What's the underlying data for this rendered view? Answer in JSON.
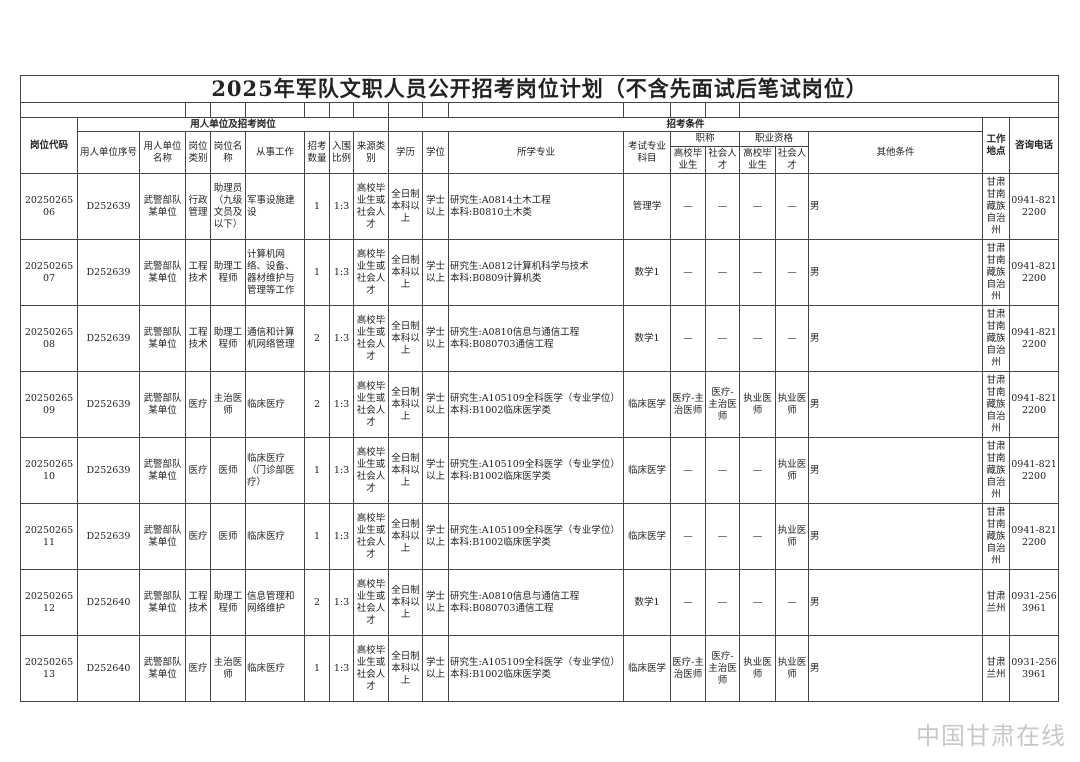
{
  "title": "2025年军队文职人员公开招考岗位计划（不含先面试后笔试岗位）",
  "headers": {
    "post_code": "岗位代码",
    "group_unit": "用人单位及招考岗位",
    "group_conditions": "招考条件",
    "unit_seq": "用人单位序号",
    "unit_name": "用人单位名称",
    "post_type": "岗位类别",
    "post_name": "岗位名称",
    "work": "从事工作",
    "count": "招考数量",
    "ratio": "入围比例",
    "source": "来源类别",
    "education": "学历",
    "degree": "学位",
    "major": "所学专业",
    "exam_subject": "考试专业科目",
    "title_group": "职称",
    "qual_group": "职业资格",
    "grad": "高校毕业生",
    "social": "社会人才",
    "grad2": "高校毕业生",
    "social2": "社会人才",
    "other": "其他条件",
    "location": "工作地点",
    "phone": "咨询电话"
  },
  "rows": [
    {
      "code": "2025026506",
      "seq": "D252639",
      "unit": "武警部队某单位",
      "type": "行政管理",
      "post": "助理员（九级文员及以下）",
      "work": "军事设施建设",
      "count": "1",
      "ratio": "1:3",
      "source": "高校毕业生或社会人才",
      "edu": "全日制本科以上",
      "degree": "学士以上",
      "major": "研究生:A0814土木工程\n本科:B0810土木类",
      "exam": "管理学",
      "t_grad": "—",
      "t_soc": "—",
      "q_grad": "—",
      "q_soc": "—",
      "other": "男",
      "loc": "甘肃甘南藏族自治州",
      "phone": "0941-8212200"
    },
    {
      "code": "2025026507",
      "seq": "D252639",
      "unit": "武警部队某单位",
      "type": "工程技术",
      "post": "助理工程师",
      "work": "计算机网络、设备、器材维护与管理等工作",
      "count": "1",
      "ratio": "1:3",
      "source": "高校毕业生或社会人才",
      "edu": "全日制本科以上",
      "degree": "学士以上",
      "major": "研究生:A0812计算机科学与技术\n本科:B0809计算机类",
      "exam": "数学1",
      "t_grad": "—",
      "t_soc": "—",
      "q_grad": "—",
      "q_soc": "—",
      "other": "男",
      "loc": "甘肃甘南藏族自治州",
      "phone": "0941-8212200"
    },
    {
      "code": "2025026508",
      "seq": "D252639",
      "unit": "武警部队某单位",
      "type": "工程技术",
      "post": "助理工程师",
      "work": "通信和计算机网络管理",
      "count": "2",
      "ratio": "1:3",
      "source": "高校毕业生或社会人才",
      "edu": "全日制本科以上",
      "degree": "学士以上",
      "major": "研究生:A0810信息与通信工程\n本科:B080703通信工程",
      "exam": "数学1",
      "t_grad": "—",
      "t_soc": "—",
      "q_grad": "—",
      "q_soc": "—",
      "other": "男",
      "loc": "甘肃甘南藏族自治州",
      "phone": "0941-8212200"
    },
    {
      "code": "2025026509",
      "seq": "D252639",
      "unit": "武警部队某单位",
      "type": "医疗",
      "post": "主治医师",
      "work": "临床医疗",
      "count": "2",
      "ratio": "1:3",
      "source": "高校毕业生或社会人才",
      "edu": "全日制本科以上",
      "degree": "学士以上",
      "major": "研究生:A105109全科医学（专业学位）\n本科:B1002临床医学类",
      "exam": "临床医学",
      "t_grad": "医疗-主治医师",
      "t_soc": "医疗-主治医师",
      "q_grad": "执业医师",
      "q_soc": "执业医师",
      "other": "男",
      "loc": "甘肃甘南藏族自治州",
      "phone": "0941-8212200"
    },
    {
      "code": "2025026510",
      "seq": "D252639",
      "unit": "武警部队某单位",
      "type": "医疗",
      "post": "医师",
      "work": "临床医疗（门诊部医疗）",
      "count": "1",
      "ratio": "1:3",
      "source": "高校毕业生或社会人才",
      "edu": "全日制本科以上",
      "degree": "学士以上",
      "major": "研究生:A105109全科医学（专业学位）\n本科:B1002临床医学类",
      "exam": "临床医学",
      "t_grad": "—",
      "t_soc": "—",
      "q_grad": "—",
      "q_soc": "执业医师",
      "other": "男",
      "loc": "甘肃甘南藏族自治州",
      "phone": "0941-8212200"
    },
    {
      "code": "2025026511",
      "seq": "D252639",
      "unit": "武警部队某单位",
      "type": "医疗",
      "post": "医师",
      "work": "临床医疗",
      "count": "1",
      "ratio": "1:3",
      "source": "高校毕业生或社会人才",
      "edu": "全日制本科以上",
      "degree": "学士以上",
      "major": "研究生:A105109全科医学（专业学位）\n本科:B1002临床医学类",
      "exam": "临床医学",
      "t_grad": "—",
      "t_soc": "—",
      "q_grad": "—",
      "q_soc": "执业医师",
      "other": "男",
      "loc": "甘肃甘南藏族自治州",
      "phone": "0941-8212200"
    },
    {
      "code": "2025026512",
      "seq": "D252640",
      "unit": "武警部队某单位",
      "type": "工程技术",
      "post": "助理工程师",
      "work": "信息管理和网络维护",
      "count": "2",
      "ratio": "1:3",
      "source": "高校毕业生或社会人才",
      "edu": "全日制本科以上",
      "degree": "学士以上",
      "major": "研究生:A0810信息与通信工程\n本科:B080703通信工程",
      "exam": "数学1",
      "t_grad": "—",
      "t_soc": "—",
      "q_grad": "—",
      "q_soc": "—",
      "other": "男",
      "loc": "甘肃兰州",
      "phone": "0931-2563961"
    },
    {
      "code": "2025026513",
      "seq": "D252640",
      "unit": "武警部队某单位",
      "type": "医疗",
      "post": "主治医师",
      "work": "临床医疗",
      "count": "1",
      "ratio": "1:3",
      "source": "高校毕业生或社会人才",
      "edu": "全日制本科以上",
      "degree": "学士以上",
      "major": "研究生:A105109全科医学（专业学位）\n本科:B1002临床医学类",
      "exam": "临床医学",
      "t_grad": "医疗-主治医师",
      "t_soc": "医疗-主治医师",
      "q_grad": "执业医师",
      "q_soc": "执业医师",
      "other": "男",
      "loc": "甘肃兰州",
      "phone": "0931-2563961"
    }
  ],
  "watermark": "中国甘肃在线"
}
